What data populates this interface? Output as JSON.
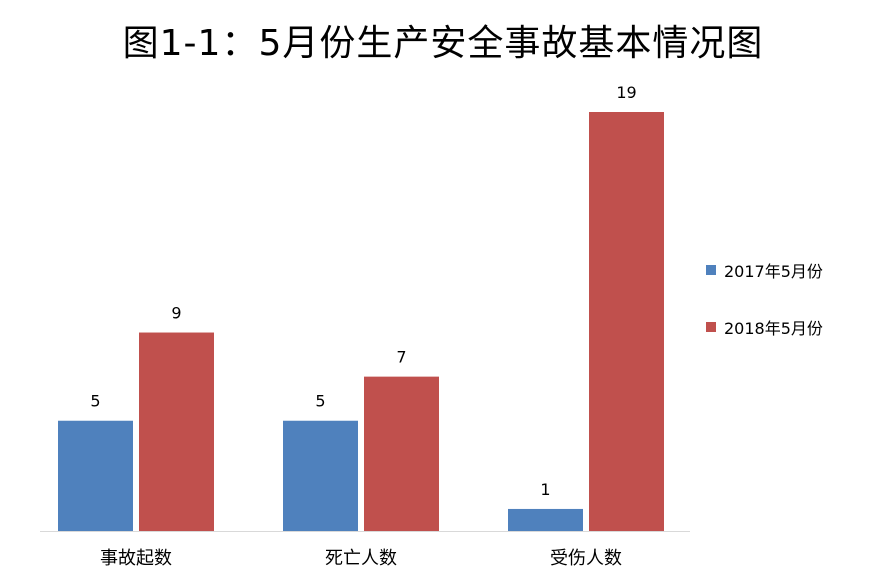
{
  "chart_data": {
    "type": "bar",
    "title": "图1-1：5月份生产安全事故基本情况图",
    "categories": [
      "事故起数",
      "死亡人数",
      "受伤人数"
    ],
    "series": [
      {
        "name": "2017年5月份",
        "values": [
          5,
          5,
          1
        ],
        "color": "#4f81bd"
      },
      {
        "name": "2018年5月份",
        "values": [
          9,
          7,
          19
        ],
        "color": "#c0504d"
      }
    ],
    "xlabel": "",
    "ylabel": "",
    "ylim": [
      0,
      19
    ],
    "grid": false,
    "legend": "right",
    "data_labels": true
  }
}
